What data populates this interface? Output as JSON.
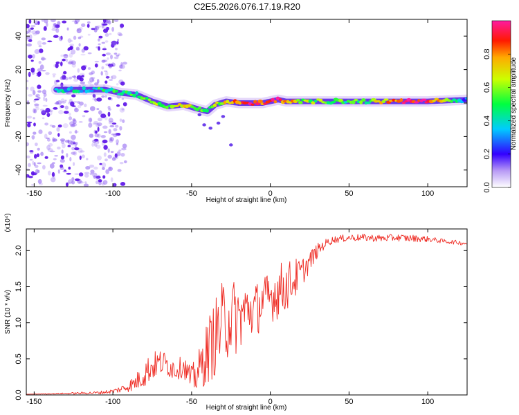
{
  "title": "C2E5.2026.076.17.19.R20",
  "colors": {
    "snr_line": "#ee2a22",
    "frame": "#000000",
    "cloud": "#8a5cf0",
    "cloud_dark": "#5a10e8"
  },
  "chart_data": [
    {
      "type": "heatmap",
      "title": "C2E5.2026.076.17.19.R20",
      "xlabel": "Height of straight line (km)",
      "ylabel": "Frequency (Hz)",
      "xlim": [
        -155,
        125
      ],
      "ylim": [
        -50,
        50
      ],
      "xticks": [
        -150,
        -100,
        -50,
        0,
        50,
        100
      ],
      "yticks": [
        -40,
        -20,
        0,
        20,
        40
      ],
      "colorbar": {
        "label": "Normalized spectral amplitude",
        "range": [
          0,
          1
        ],
        "ticks": [
          "0.0",
          "0.2",
          "0.4",
          "0.6",
          "0.8"
        ],
        "tick_values": [
          0,
          0.2,
          0.4,
          0.6,
          0.8
        ]
      },
      "ridge": {
        "x": [
          -136,
          -120,
          -105,
          -95,
          -85,
          -75,
          -65,
          -55,
          -48,
          -40,
          -35,
          -28,
          -20,
          -12,
          -5,
          0,
          5,
          10,
          20,
          40,
          60,
          80,
          100,
          125
        ],
        "frequency": [
          8,
          8,
          8,
          6,
          5,
          1,
          -2,
          -1,
          -3,
          -5,
          -1,
          1,
          0,
          0,
          0,
          1,
          2,
          1,
          1,
          1,
          1,
          1,
          1,
          2
        ],
        "amplitude": [
          0.35,
          0.4,
          0.45,
          0.5,
          0.45,
          0.55,
          0.6,
          0.65,
          0.6,
          0.55,
          0.6,
          0.7,
          0.8,
          0.9,
          0.85,
          0.95,
          0.9,
          0.8,
          0.6,
          0.5,
          0.5,
          0.85,
          0.95,
          0.2
        ]
      },
      "noise_region": {
        "x": [
          -155,
          -100
        ],
        "frequency": [
          -50,
          50
        ]
      }
    },
    {
      "type": "line",
      "title": "",
      "xlabel": "Height of straight line (km)",
      "ylabel": "SNR (10 * v/v)",
      "ylabel_note": "(x10⁴)",
      "xlim": [
        -155,
        125
      ],
      "ylim": [
        0,
        2.3
      ],
      "xticks": [
        -150,
        -100,
        -50,
        0,
        50,
        100
      ],
      "yticks": [
        "0.0",
        "0.5",
        "1.0",
        "1.5",
        "2.0"
      ],
      "ytick_values": [
        0,
        0.5,
        1.0,
        1.5,
        2.0
      ],
      "series": [
        {
          "name": "SNR",
          "color": "#ee2a22",
          "x": [
            -155,
            -130,
            -110,
            -100,
            -95,
            -90,
            -85,
            -80,
            -75,
            -70,
            -65,
            -60,
            -55,
            -50,
            -45,
            -40,
            -35,
            -30,
            -25,
            -20,
            -15,
            -10,
            -5,
            0,
            5,
            10,
            15,
            20,
            25,
            30,
            35,
            40,
            50,
            60,
            70,
            80,
            90,
            100,
            110,
            120,
            125
          ],
          "values": [
            0.01,
            0.02,
            0.03,
            0.05,
            0.08,
            0.12,
            0.18,
            0.3,
            0.4,
            0.45,
            0.42,
            0.35,
            0.4,
            0.2,
            0.35,
            0.6,
            0.8,
            1.0,
            1.1,
            1.05,
            1.2,
            1.15,
            1.3,
            1.35,
            1.45,
            1.5,
            1.6,
            1.7,
            1.85,
            2.0,
            2.1,
            2.15,
            2.18,
            2.18,
            2.17,
            2.18,
            2.17,
            2.16,
            2.13,
            2.11,
            2.1
          ],
          "noise": [
            0.0,
            0.01,
            0.02,
            0.03,
            0.05,
            0.08,
            0.12,
            0.2,
            0.2,
            0.18,
            0.18,
            0.15,
            0.15,
            0.2,
            0.3,
            0.45,
            0.55,
            0.6,
            0.55,
            0.5,
            0.35,
            0.4,
            0.35,
            0.35,
            0.4,
            0.35,
            0.3,
            0.2,
            0.15,
            0.1,
            0.06,
            0.05,
            0.05,
            0.05,
            0.05,
            0.05,
            0.05,
            0.04,
            0.03,
            0.03,
            0.03
          ]
        }
      ]
    }
  ]
}
